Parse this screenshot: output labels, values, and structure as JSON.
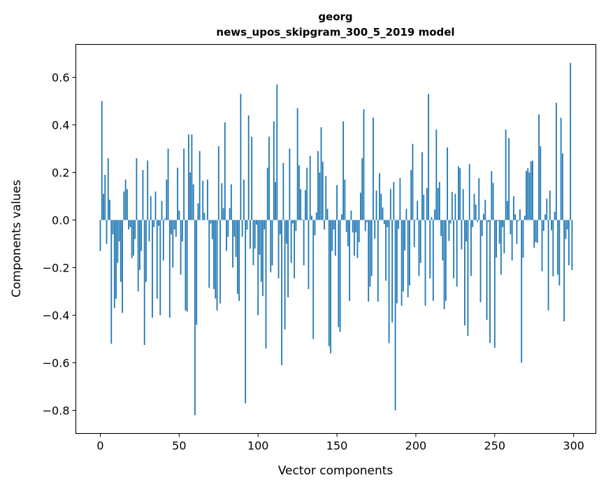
{
  "chart_data": {
    "type": "bar",
    "title": "georg",
    "subtitle": "news_upos_skipgram_300_5_2019 model",
    "xlabel": "Vector components",
    "ylabel": "Components values",
    "xlim": [
      -15.5,
      314.1
    ],
    "ylim": [
      -0.897,
      0.738
    ],
    "grid": false,
    "color": "#1f77b4",
    "bar_width": 0.8,
    "xticks": [
      0,
      50,
      100,
      150,
      200,
      250,
      300
    ],
    "xtick_labels": [
      "0",
      "50",
      "100",
      "150",
      "200",
      "250",
      "300"
    ],
    "yticks": [
      -0.8,
      -0.6,
      -0.4,
      -0.2,
      0.0,
      0.2,
      0.4,
      0.6
    ],
    "ytick_labels": [
      "−0.8",
      "−0.6",
      "−0.4",
      "−0.2",
      "0.0",
      "0.2",
      "0.4",
      "0.6"
    ],
    "values": [
      -0.13,
      0.5,
      0.11,
      0.19,
      -0.1,
      0.26,
      0.085,
      -0.52,
      -0.06,
      -0.37,
      -0.33,
      -0.18,
      -0.09,
      -0.26,
      -0.39,
      0.12,
      0.17,
      0.13,
      -0.04,
      -0.03,
      -0.16,
      -0.15,
      -0.08,
      0.26,
      -0.3,
      -0.21,
      -0.13,
      0.21,
      -0.525,
      -0.26,
      0.25,
      -0.09,
      0.1,
      -0.41,
      -0.03,
      0.12,
      -0.33,
      -0.025,
      -0.4,
      0.08,
      -0.17,
      0.006,
      0.17,
      0.3,
      -0.41,
      -0.06,
      -0.2,
      -0.04,
      -0.07,
      0.22,
      0.04,
      -0.23,
      -0.09,
      0.3,
      -0.38,
      -0.385,
      0.36,
      0.2,
      0.36,
      0.15,
      -0.82,
      -0.44,
      0.07,
      0.29,
      0.0,
      0.165,
      0.03,
      0.0,
      0.17,
      -0.285,
      -0.015,
      -0.08,
      -0.29,
      -0.33,
      -0.38,
      0.31,
      -0.35,
      0.155,
      0.05,
      0.41,
      -0.13,
      -0.07,
      0.05,
      0.15,
      -0.2,
      -0.07,
      -0.155,
      -0.31,
      -0.34,
      0.53,
      -0.07,
      0.17,
      -0.77,
      -0.04,
      0.44,
      -0.12,
      0.35,
      -0.19,
      -0.12,
      -0.02,
      -0.4,
      -0.146,
      -0.26,
      -0.32,
      -0.04,
      -0.54,
      0.22,
      0.35,
      -0.22,
      -0.19,
      0.415,
      0.16,
      0.57,
      -0.245,
      -0.06,
      -0.61,
      0.24,
      -0.46,
      -0.1,
      -0.325,
      0.3,
      -0.18,
      -0.014,
      -0.245,
      -0.046,
      0.47,
      0.23,
      0.13,
      0.003,
      -0.19,
      0.126,
      0.22,
      -0.29,
      0.27,
      0.018,
      -0.5,
      -0.064,
      0.032,
      0.29,
      0.2,
      0.39,
      0.245,
      -0.04,
      0.185,
      0.047,
      -0.53,
      -0.56,
      -0.13,
      -0.04,
      -0.15,
      0.147,
      -0.45,
      -0.47,
      0.024,
      0.415,
      0.17,
      -0.05,
      -0.11,
      -0.34,
      0.04,
      -0.052,
      -0.15,
      -0.052,
      -0.16,
      -0.093,
      0.115,
      0.26,
      0.465,
      -0.046,
      -0.008,
      -0.343,
      -0.28,
      -0.235,
      0.43,
      -0.078,
      0.124,
      -0.343,
      0.197,
      0.11,
      0.053,
      -0.017,
      -0.255,
      -0.03,
      -0.517,
      0.13,
      -0.43,
      0.16,
      -0.8,
      -0.35,
      -0.037,
      0.176,
      -0.36,
      -0.3,
      -0.128,
      0.047,
      -0.325,
      -0.275,
      0.21,
      0.32,
      -0.114,
      0.003,
      0.08,
      -0.235,
      -0.18,
      0.285,
      0.106,
      -0.36,
      0.135,
      0.53,
      -0.245,
      0.012,
      -0.34,
      0.044,
      0.38,
      0.135,
      0.16,
      -0.067,
      -0.17,
      -0.375,
      -0.34,
      0.305,
      -0.088,
      -0.014,
      0.118,
      -0.245,
      0.11,
      -0.28,
      0.226,
      0.218,
      -0.123,
      0.13,
      -0.443,
      -0.09,
      -0.487,
      0.235,
      -0.235,
      -0.03,
      0.11,
      0.065,
      -0.008,
      0.176,
      -0.345,
      -0.067,
      0.026,
      0.085,
      -0.42,
      -0.008,
      -0.517,
      0.206,
      0.156,
      -0.537,
      -0.158,
      -0.004,
      -0.1,
      -0.23,
      -0.03,
      -0.14,
      0.38,
      0.08,
      0.344,
      -0.06,
      -0.17,
      0.1,
      0.024,
      -0.1,
      -0.005,
      0.044,
      -0.6,
      -0.158,
      0.018,
      0.206,
      0.218,
      0.2,
      0.247,
      0.25,
      -0.117,
      -0.093,
      -0.096,
      0.444,
      0.31,
      -0.215,
      -0.046,
      0.024,
      0.09,
      -0.38,
      0.124,
      -0.043,
      -0.237,
      0.035,
      0.493,
      -0.23,
      -0.275,
      0.43,
      0.28,
      -0.426,
      -0.08,
      -0.04,
      -0.19,
      0.66,
      -0.21
    ]
  }
}
